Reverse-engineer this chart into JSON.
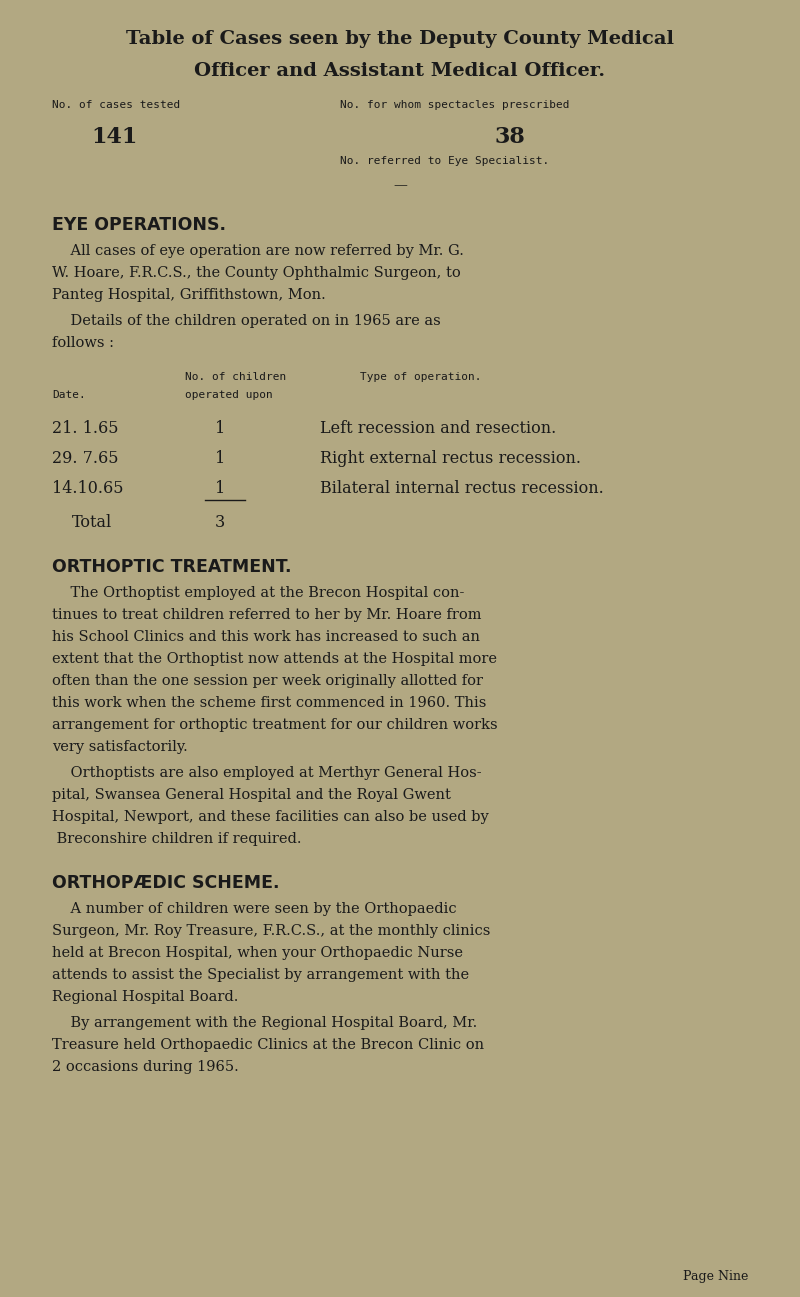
{
  "bg_color": "#b2a882",
  "text_color": "#1a1a1a",
  "page_width": 8.0,
  "page_height": 12.97,
  "title_line1": "Table of Cases seen by the Deputy County Medical",
  "title_line2": "Officer and Assistant Medical Officer.",
  "table_label1": "No. of cases tested",
  "table_label2": "No. for whom spectacles prescribed",
  "table_val1": "141",
  "table_val2": "38",
  "table_label3": "No. referred to Eye Specialist.",
  "section1_heading": "EYE OPERATIONS.",
  "section2_heading": "ORTHOPTIC TREATMENT.",
  "section3_heading": "ORTHOPÆDIC SCHEME.",
  "para1_lines": [
    "    All cases of eye operation are now referred by Mr. G.",
    "W. Hoare, F.R.C.S., the County Ophthalmic Surgeon, to",
    "Panteg Hospital, Griffithstown, Mon."
  ],
  "para2_lines": [
    "    Details of the children operated on in 1965 are as",
    "follows :"
  ],
  "table2_col2_header1": "No. of children",
  "table2_col2_header2": "operated upon",
  "table2_col1_header": "Date.",
  "table2_col3_header": "Type of operation.",
  "table2_rows": [
    {
      "date": "21. 1.65",
      "num": "1",
      "op": "Left recession and resection."
    },
    {
      "date": "29. 7.65",
      "num": "1",
      "op": "Right external rectus recession."
    },
    {
      "date": "14.10.65",
      "num": "1",
      "op": "Bilateral internal rectus recession."
    }
  ],
  "table2_total_label": "Total",
  "table2_total_val": "3",
  "para3_lines": [
    "    The Orthoptist employed at the Brecon Hospital con-",
    "tinues to treat children referred to her by Mr. Hoare from",
    "his School Clinics and this work has increased to such an",
    "extent that the Orthoptist now attends at the Hospital more",
    "often than the one session per week originally allotted for",
    "this work when the scheme first commenced in 1960. This",
    "arrangement for orthoptic treatment for our children works",
    "very satisfactorily."
  ],
  "para4_lines": [
    "    Orthoptists are also employed at Merthyr General Hos-",
    "pital, Swansea General Hospital and the Royal Gwent",
    "Hospital, Newport, and these facilities can also be used by",
    " Breconshire children if required."
  ],
  "para5_lines": [
    "    A number of children were seen by the Orthopaedic",
    "Surgeon, Mr. Roy Treasure, F.R.C.S., at the monthly clinics",
    "held at Brecon Hospital, when your Orthopaedic Nurse",
    "attends to assist the Specialist by arrangement with the",
    "Regional Hospital Board."
  ],
  "para6_lines": [
    "    By arrangement with the Regional Hospital Board, Mr.",
    "Treasure held Orthopaedic Clinics at the Brecon Clinic on",
    "2 occasions during 1965."
  ],
  "page_label": "Page Nine"
}
